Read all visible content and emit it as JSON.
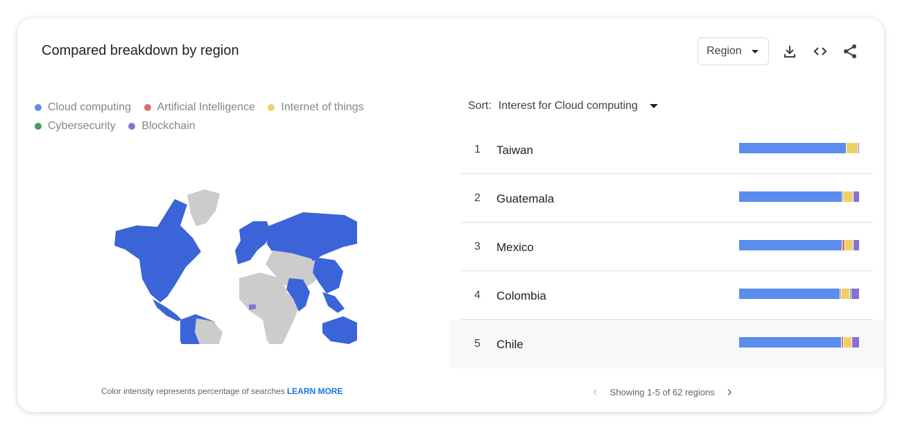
{
  "title": "Compared breakdown by region",
  "region_select": {
    "value": "Region"
  },
  "icons": [
    "download-icon",
    "embed-code-icon",
    "share-icon"
  ],
  "legend": [
    {
      "label": "Cloud computing",
      "color": "#5b8def"
    },
    {
      "label": "Artificial Intelligence",
      "color": "#db6f61"
    },
    {
      "label": "Internet of things",
      "color": "#f0d066"
    },
    {
      "label": "Cybersecurity",
      "color": "#3ea35a"
    },
    {
      "label": "Blockchain",
      "color": "#8a6fd4"
    }
  ],
  "map_note": "Color intensity represents percentage of searches",
  "learn_more": "LEARN MORE",
  "sort": {
    "label": "Sort:",
    "value": "Interest for Cloud computing"
  },
  "rows": [
    {
      "rank": "1",
      "name": "Taiwan",
      "shares": [
        88,
        0,
        10,
        0,
        1
      ]
    },
    {
      "rank": "2",
      "name": "Guatemala",
      "shares": [
        85,
        1,
        8,
        0,
        5
      ]
    },
    {
      "rank": "3",
      "name": "Mexico",
      "shares": [
        85,
        2,
        7,
        0,
        5
      ]
    },
    {
      "rank": "4",
      "name": "Colombia",
      "shares": [
        84,
        1,
        7,
        1,
        7
      ]
    },
    {
      "rank": "5",
      "name": "Chile",
      "shares": [
        84,
        2,
        7,
        0,
        6
      ]
    }
  ],
  "pager": {
    "text": "Showing 1-5 of 62 regions"
  }
}
